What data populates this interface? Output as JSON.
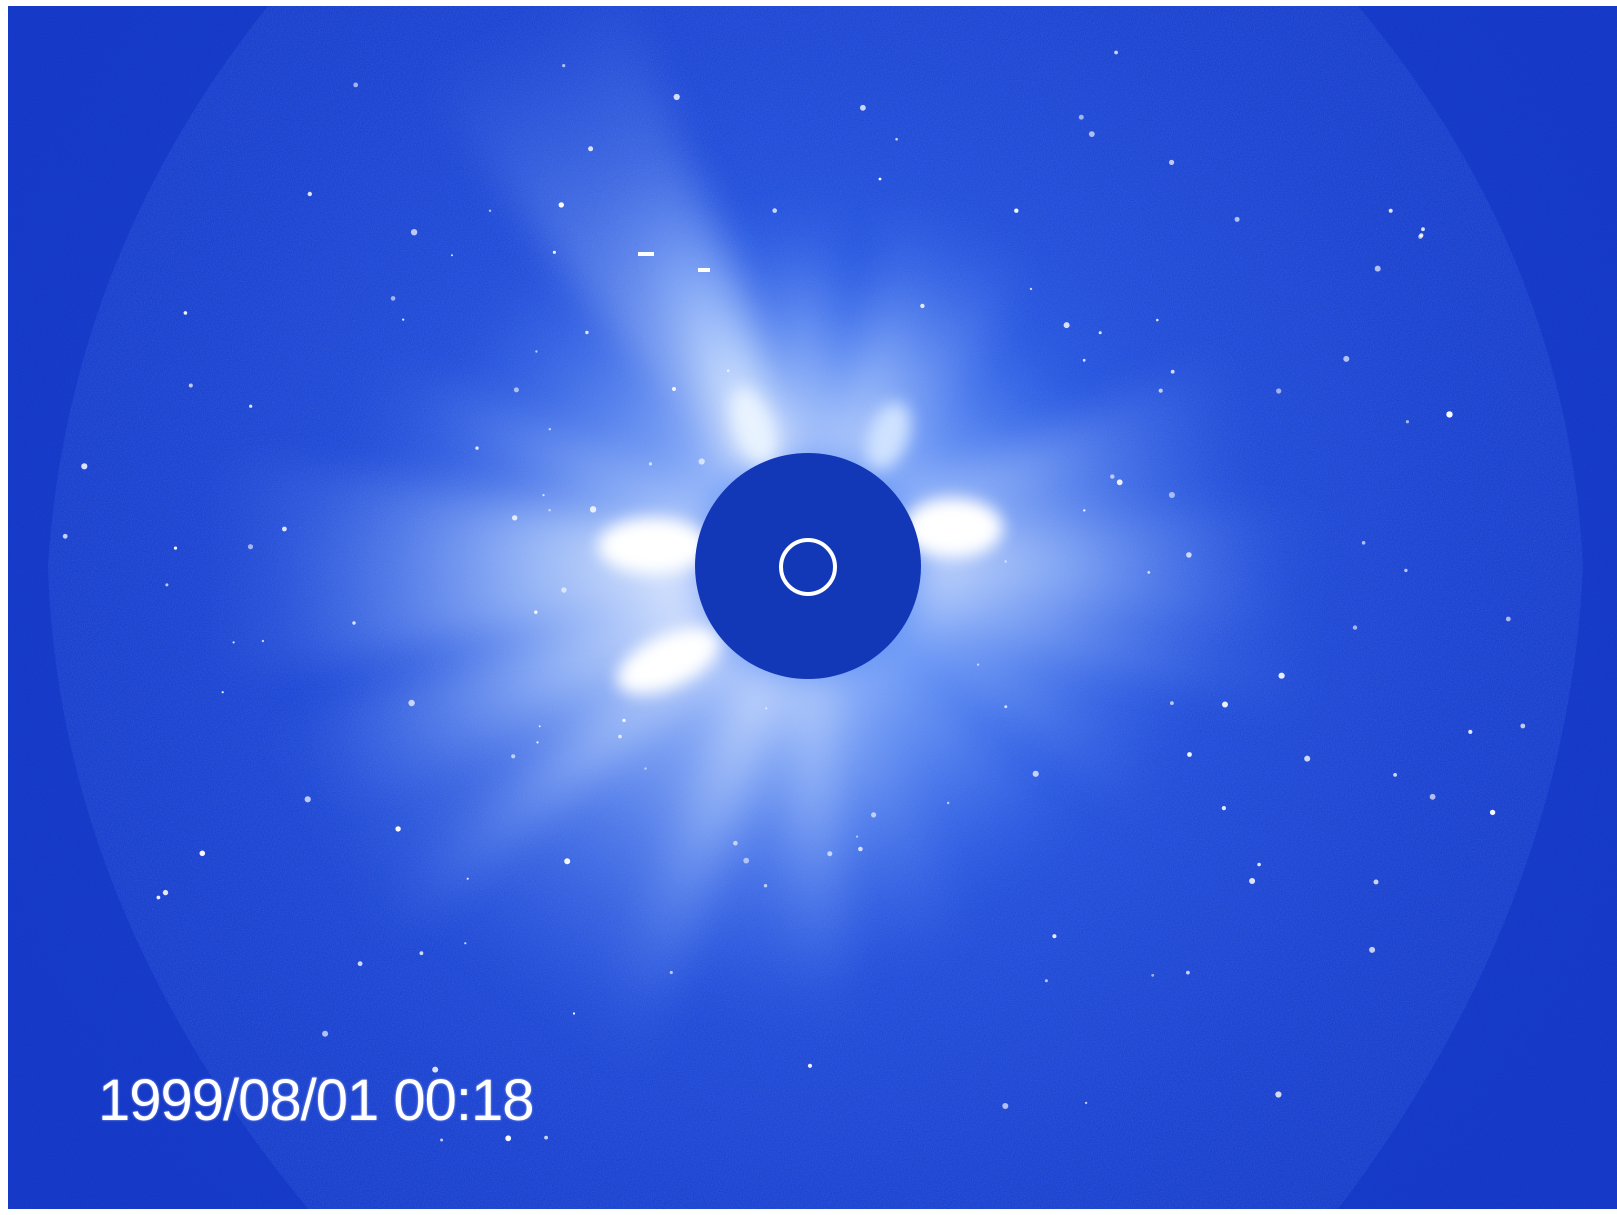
{
  "image": {
    "kind": "solar coronagraph image",
    "background_color": "#1238c8",
    "corona_color": "#d8ecff",
    "occulter_color": "#1238b8",
    "sun_outline_color": "#ffffff"
  },
  "overlay": {
    "timestamp": "1999/08/01 00:18"
  }
}
